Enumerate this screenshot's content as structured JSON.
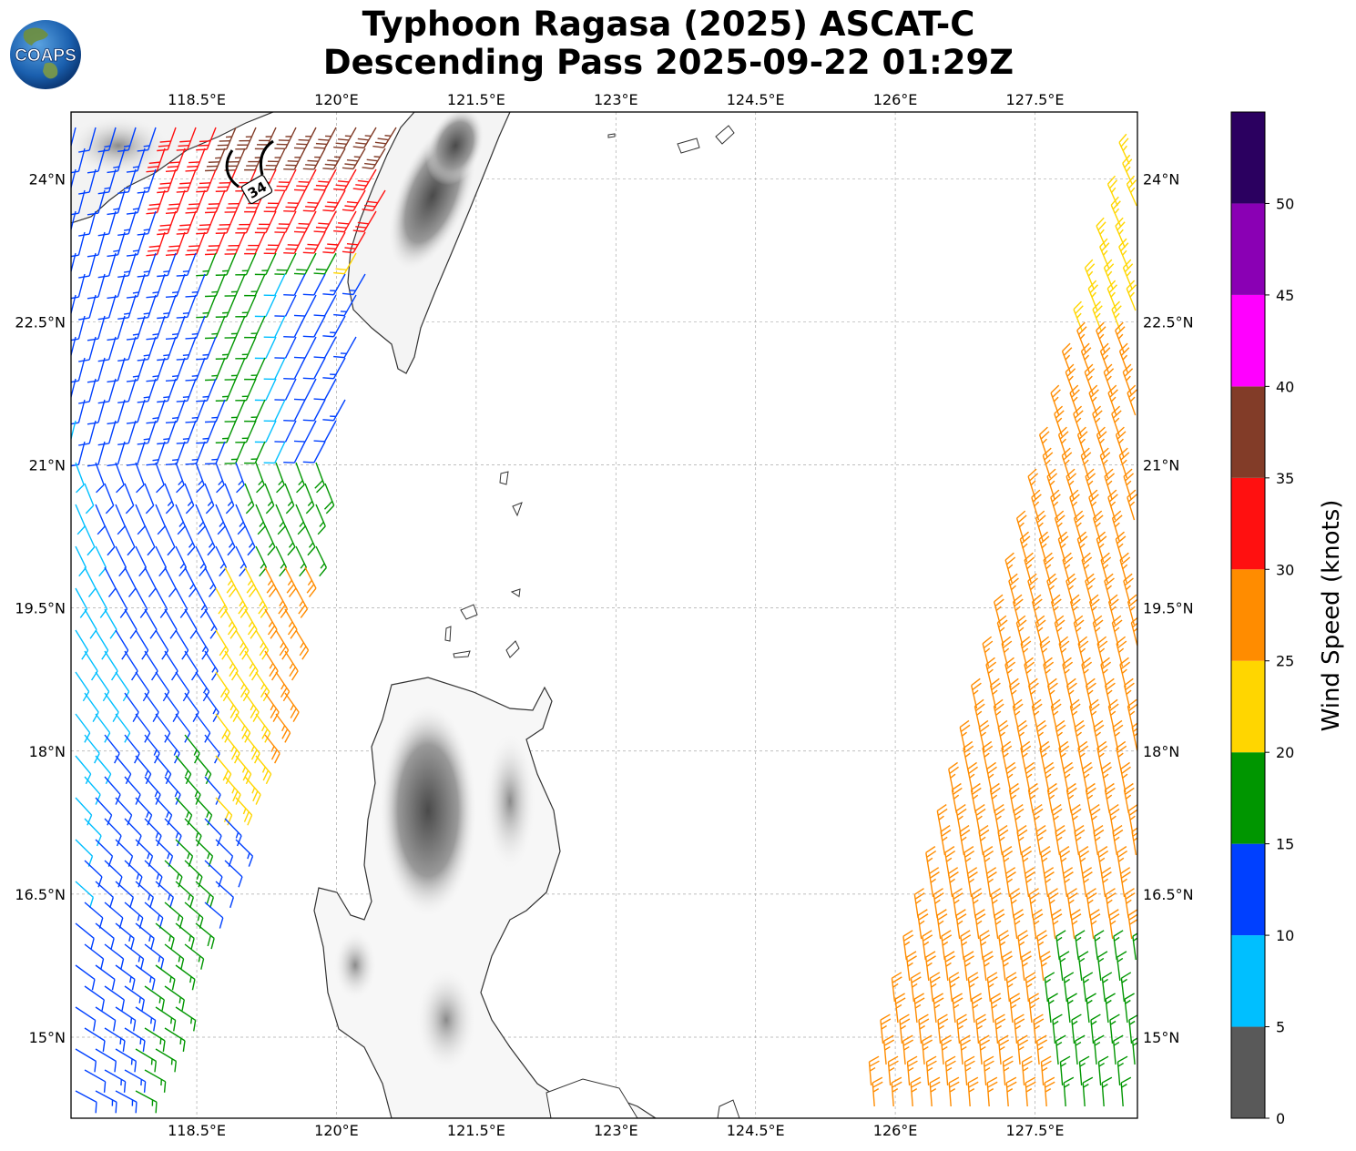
{
  "title_line1": "Typhoon Ragasa (2025) ASCAT-C",
  "title_line2": "Descending Pass 2025-09-22 01:29Z",
  "logo_text": "COAPS",
  "contour_label": "34",
  "lon_ticks": [
    "118.5°E",
    "120°E",
    "121.5°E",
    "123°E",
    "124.5°E",
    "126°E",
    "127.5°E"
  ],
  "lat_ticks": [
    "24°N",
    "22.5°N",
    "21°N",
    "19.5°N",
    "18°N",
    "16.5°N",
    "15°N"
  ],
  "colorbar": {
    "label": "Wind Speed (knots)",
    "ticks": [
      "0",
      "5",
      "10",
      "15",
      "20",
      "25",
      "30",
      "35",
      "40",
      "45",
      "50"
    ],
    "bins": [
      {
        "min": 0,
        "max": 5,
        "color": "#595959"
      },
      {
        "min": 5,
        "max": 10,
        "color": "#00bfff"
      },
      {
        "min": 10,
        "max": 15,
        "color": "#0040ff"
      },
      {
        "min": 15,
        "max": 20,
        "color": "#009600"
      },
      {
        "min": 20,
        "max": 25,
        "color": "#ffd600"
      },
      {
        "min": 25,
        "max": 30,
        "color": "#ff8c00"
      },
      {
        "min": 30,
        "max": 35,
        "color": "#ff1010"
      },
      {
        "min": 35,
        "max": 40,
        "color": "#823c28"
      },
      {
        "min": 40,
        "max": 45,
        "color": "#ff00ff"
      },
      {
        "min": 45,
        "max": 50,
        "color": "#8a00b4"
      },
      {
        "min": 50,
        "max": 55,
        "color": "#2b0060"
      }
    ]
  },
  "extent": {
    "lon": [
      117.15,
      128.6
    ],
    "lat": [
      14.15,
      24.7
    ]
  }
}
